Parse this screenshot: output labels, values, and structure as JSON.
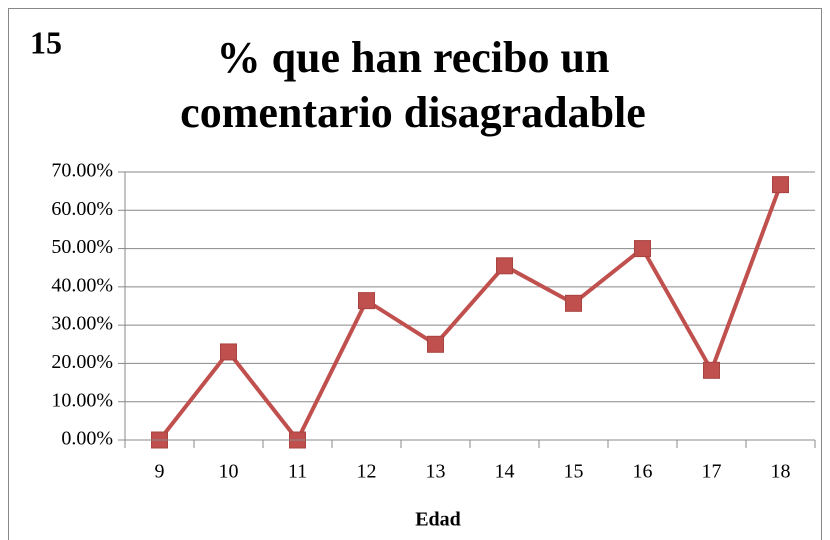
{
  "chart_data": {
    "type": "line",
    "annotation": "15",
    "title": [
      "% que han recibo un",
      "comentario disagradable"
    ],
    "x_label": "Edad",
    "categories": [
      "9",
      "10",
      "11",
      "12",
      "13",
      "14",
      "15",
      "16",
      "17",
      "18"
    ],
    "series": [
      {
        "color": "#c0504d",
        "values": [
          0,
          23,
          0,
          36.4,
          25,
          45.5,
          35.7,
          50,
          18.2,
          66.7
        ]
      }
    ],
    "ylim": [
      0,
      70
    ],
    "yticks": [
      {
        "value": 0,
        "label": "0.00%"
      },
      {
        "value": 10,
        "label": "10.00%"
      },
      {
        "value": 20,
        "label": "20.00%"
      },
      {
        "value": 30,
        "label": "30.00%"
      },
      {
        "value": 40,
        "label": "40.00%"
      },
      {
        "value": 50,
        "label": "50.00%"
      },
      {
        "value": 60,
        "label": "60.00%"
      },
      {
        "value": 70,
        "label": "70.00%"
      }
    ],
    "grid": true
  }
}
